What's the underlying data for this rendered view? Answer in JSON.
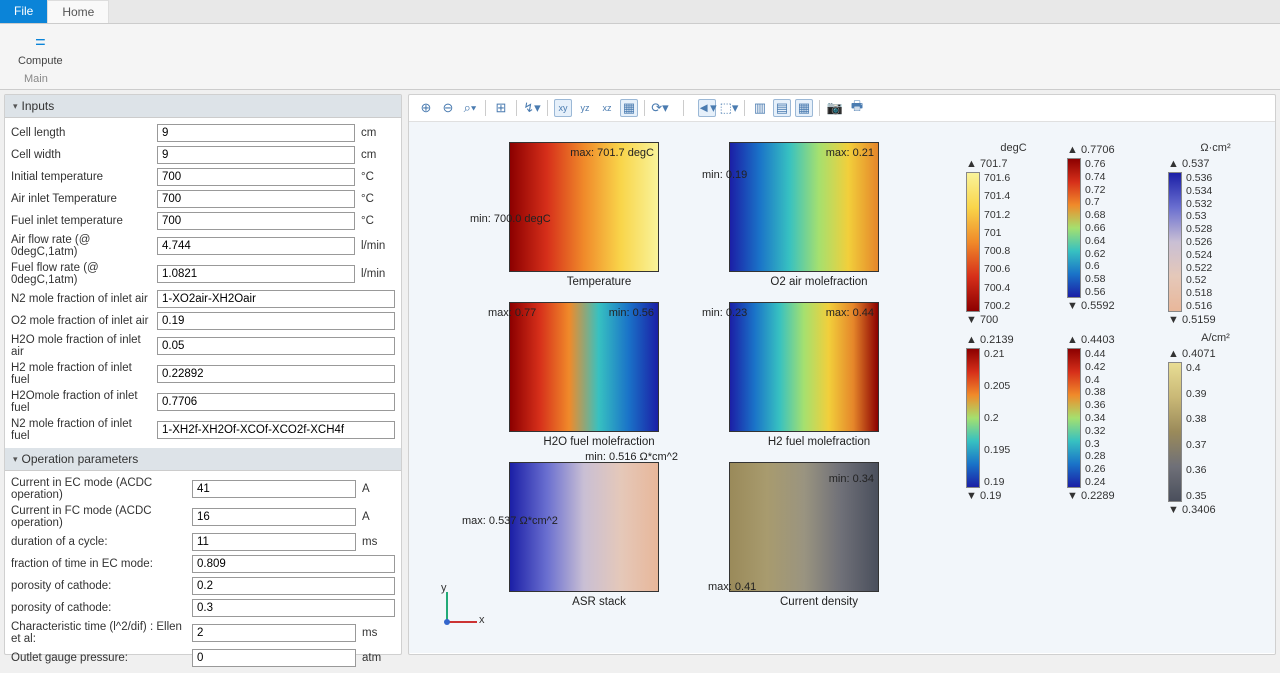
{
  "tabs": {
    "file": "File",
    "home": "Home"
  },
  "ribbon": {
    "compute": "Compute",
    "group": "Main"
  },
  "sections": {
    "inputs": "Inputs",
    "opparams": "Operation parameters"
  },
  "inputs": [
    {
      "label": "Cell length",
      "value": "9",
      "unit": "cm"
    },
    {
      "label": "Cell width",
      "value": "9",
      "unit": "cm"
    },
    {
      "label": "Initial temperature",
      "value": "700",
      "unit": "°C"
    },
    {
      "label": "Air inlet Temperature",
      "value": "700",
      "unit": "°C"
    },
    {
      "label": "Fuel inlet temperature",
      "value": "700",
      "unit": "°C"
    },
    {
      "label": "Air flow rate (@ 0degC,1atm)",
      "value": "4.744",
      "unit": "l/min"
    },
    {
      "label": "Fuel flow rate (@ 0degC,1atm)",
      "value": "1.0821",
      "unit": "l/min"
    },
    {
      "label": "N2 mole fraction of inlet air",
      "value": "1-XO2air-XH2Oair",
      "unit": ""
    },
    {
      "label": "O2 mole fraction of inlet air",
      "value": "0.19",
      "unit": ""
    },
    {
      "label": "H2O mole fraction of inlet air",
      "value": "0.05",
      "unit": ""
    },
    {
      "label": "H2 mole fraction of inlet fuel",
      "value": "0.22892",
      "unit": ""
    },
    {
      "label": "H2Omole fraction of inlet fuel",
      "value": "0.7706",
      "unit": ""
    },
    {
      "label": "N2 mole fraction of inlet fuel",
      "value": "1-XH2f-XH2Of-XCOf-XCO2f-XCH4f",
      "unit": ""
    }
  ],
  "opparams": [
    {
      "label": "Current in EC mode (ACDC operation)",
      "value": "41",
      "unit": "A"
    },
    {
      "label": "Current in FC mode (ACDC operation)",
      "value": "16",
      "unit": "A"
    },
    {
      "label": "duration of  a cycle:",
      "value": "11",
      "unit": "ms"
    },
    {
      "label": "fraction of time in EC mode:",
      "value": "0.809",
      "unit": ""
    },
    {
      "label": "porosity of cathode:",
      "value": "0.2",
      "unit": ""
    },
    {
      "label": "porosity of cathode:",
      "value": "0.3",
      "unit": ""
    },
    {
      "label": "Characteristic time (l^2/dif) : Ellen et al:",
      "value": "2",
      "unit": "ms"
    },
    {
      "label": "Outlet gauge pressure:",
      "value": "0",
      "unit": "atm"
    }
  ],
  "plots": [
    {
      "caption": "Temperature",
      "maxlabel": "max: 701.7 degC",
      "minlabel": "min: 700.0 degC",
      "grad": "linear-gradient(90deg,#8c0000,#d62f1a,#f08a2a,#f9d54a,#f9f39a)",
      "maxpos": "top:4px;right:4px",
      "minpos": "top:70px;left:-40px"
    },
    {
      "caption": "O2 air molefraction",
      "maxlabel": "max: 0.21",
      "minlabel": "min: 0.19",
      "grad": "linear-gradient(90deg,#1b1fa6,#1a73c8,#37c1c1,#a5e06f,#f2cf3b,#e5862a)",
      "maxpos": "top:4px;right:4px",
      "minpos": "top:26px;left:-28px"
    },
    {
      "caption": "H2O fuel molefraction",
      "maxlabel": "max: 0.77",
      "minlabel": "min: 0.56",
      "grad": "linear-gradient(90deg,#8c0000,#d62f1a,#f08a2a,#37c1c1,#1a73c8,#1b1fa6)",
      "maxpos": "top:4px;left:-22px",
      "minpos": "top:4px;right:4px"
    },
    {
      "caption": "H2 fuel molefraction",
      "maxlabel": "max: 0.44",
      "minlabel": "min: 0.23",
      "grad": "linear-gradient(90deg,#1b1fa6,#1a73c8,#37c1c1,#a5e06f,#f2cf3b,#e5862a,#8c0000)",
      "maxpos": "top:4px;right:4px",
      "minpos": "top:4px;left:-28px"
    },
    {
      "caption": "ASR stack",
      "maxlabel": "max: 0.537 Ω*cm^2",
      "minlabel": "min: 0.516 Ω*cm^2",
      "grad": "linear-gradient(90deg,#1b1fa6,#6a6fd0,#c9bfd4,#e5c8b9,#e8b79a)",
      "maxpos": "top:52px;left:-48px",
      "minpos": "top:-12px;right:-20px"
    },
    {
      "caption": "Current density",
      "maxlabel": "max: 0.41",
      "minlabel": "min: 0.34",
      "grad": "linear-gradient(90deg,#9a8a5a,#a89b6e,#9a9480,#6f7078,#4a4f5c)",
      "maxpos": "bottom:-2px;left:-22px",
      "minpos": "top:10px;right:4px"
    }
  ],
  "legends_row1": [
    {
      "unit": "degC",
      "max": "▲ 701.7",
      "min": "▼ 700",
      "ticks": [
        "701.6",
        "701.4",
        "701.2",
        "701",
        "700.8",
        "700.6",
        "700.4",
        "700.2"
      ],
      "bar": "linear-gradient(180deg,#f9f39a,#f9d54a,#f08a2a,#d62f1a,#8c0000)"
    },
    {
      "unit": "",
      "max": "▲ 0.7706",
      "min": "▼ 0.5592",
      "ticks": [
        "0.76",
        "0.74",
        "0.72",
        "0.7",
        "0.68",
        "0.66",
        "0.64",
        "0.62",
        "0.6",
        "0.58",
        "0.56"
      ],
      "bar": "linear-gradient(180deg,#8c0000,#d62f1a,#f08a2a,#a5e06f,#37c1c1,#1a73c8,#1b1fa6)"
    },
    {
      "unit": "Ω·cm²",
      "max": "▲ 0.537",
      "min": "▼ 0.5159",
      "ticks": [
        "0.536",
        "0.534",
        "0.532",
        "0.53",
        "0.528",
        "0.526",
        "0.524",
        "0.522",
        "0.52",
        "0.518",
        "0.516"
      ],
      "bar": "linear-gradient(180deg,#1b1fa6,#6a6fd0,#c9bfd4,#e5c8b9,#e8b79a)"
    }
  ],
  "legends_row2": [
    {
      "unit": "",
      "max": "▲ 0.2139",
      "min": "▼ 0.19",
      "ticks": [
        "0.21",
        "0.205",
        "0.2",
        "0.195",
        "0.19"
      ],
      "bar": "linear-gradient(180deg,#8c0000,#d62f1a,#f08a2a,#a5e06f,#37c1c1,#1a73c8,#1b1fa6)"
    },
    {
      "unit": "",
      "max": "▲ 0.4403",
      "min": "▼ 0.2289",
      "ticks": [
        "0.44",
        "0.42",
        "0.4",
        "0.38",
        "0.36",
        "0.34",
        "0.32",
        "0.3",
        "0.28",
        "0.26",
        "0.24"
      ],
      "bar": "linear-gradient(180deg,#8c0000,#d62f1a,#f08a2a,#a5e06f,#37c1c1,#1a73c8,#1b1fa6)"
    },
    {
      "unit": "A/cm²",
      "max": "▲ 0.4071",
      "min": "▼ 0.3406",
      "ticks": [
        "0.4",
        "0.39",
        "0.38",
        "0.37",
        "0.36",
        "0.35"
      ],
      "bar": "linear-gradient(180deg,#e8dd94,#c9b876,#9a8a5a,#6f7078,#4a4f5c)"
    }
  ],
  "axis": {
    "y": "y",
    "x": "x"
  }
}
